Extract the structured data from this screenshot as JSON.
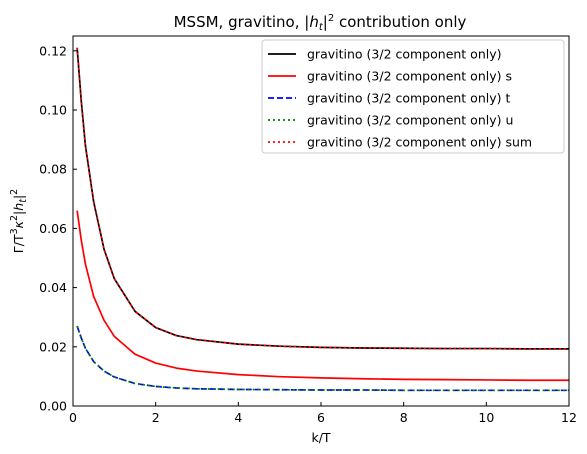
{
  "chart_data": {
    "type": "line",
    "title": {
      "prefix": "MSSM, gravitino, |",
      "var_italic": "h",
      "var_sub": "t",
      "mid": "|",
      "sup": "2",
      "suffix": " contribution only"
    },
    "xlabel": "k/T",
    "ylabel": {
      "parts": [
        {
          "t": "Γ/T",
          "italic": false
        },
        {
          "t": "3",
          "sup": true
        },
        {
          "t": "κ",
          "italic": true
        },
        {
          "t": "2",
          "sup": true
        },
        {
          "t": "|",
          "italic": false
        },
        {
          "t": "h",
          "italic": true
        },
        {
          "t": "t",
          "italic": true,
          "sub": true
        },
        {
          "t": "|",
          "italic": false
        },
        {
          "t": "2",
          "sup": true
        }
      ]
    },
    "xlim": [
      0,
      12
    ],
    "ylim": [
      0,
      0.125
    ],
    "xticks": [
      0,
      2,
      4,
      6,
      8,
      10,
      12
    ],
    "xtick_labels": [
      "0",
      "2",
      "4",
      "6",
      "8",
      "10",
      "12"
    ],
    "yticks": [
      0.0,
      0.02,
      0.04,
      0.06,
      0.08,
      0.1,
      0.12
    ],
    "ytick_labels": [
      "0.00",
      "0.02",
      "0.04",
      "0.06",
      "0.08",
      "0.10",
      "0.12"
    ],
    "grid": false,
    "legend_position": "top-right",
    "x": [
      0.1,
      0.2,
      0.3,
      0.5,
      0.75,
      1.0,
      1.5,
      2.0,
      2.5,
      3.0,
      4.0,
      5.0,
      6.0,
      7.0,
      8.0,
      9.0,
      10.0,
      11.0,
      12.0
    ],
    "series": [
      {
        "name": "gravitino (3/2 component only)",
        "color": "#000000",
        "dash": "solid",
        "values": [
          0.121,
          0.103,
          0.088,
          0.069,
          0.053,
          0.043,
          0.032,
          0.0265,
          0.0238,
          0.0224,
          0.0209,
          0.0202,
          0.0198,
          0.0196,
          0.0195,
          0.0194,
          0.0194,
          0.0193,
          0.0193
        ]
      },
      {
        "name": "gravitino (3/2 component only) s",
        "color": "#ff0000",
        "dash": "solid",
        "values": [
          0.066,
          0.056,
          0.048,
          0.037,
          0.029,
          0.0235,
          0.0175,
          0.0145,
          0.0128,
          0.0118,
          0.0106,
          0.0099,
          0.0095,
          0.0092,
          0.009,
          0.0089,
          0.0088,
          0.0087,
          0.0087
        ]
      },
      {
        "name": "gravitino (3/2 component only) t",
        "color": "#0000ff",
        "dash": "dashed",
        "values": [
          0.027,
          0.023,
          0.0195,
          0.015,
          0.0118,
          0.0098,
          0.0076,
          0.0066,
          0.0061,
          0.0058,
          0.0056,
          0.0055,
          0.0054,
          0.0054,
          0.0053,
          0.0053,
          0.0053,
          0.0053,
          0.0053
        ]
      },
      {
        "name": "gravitino (3/2 component only) u",
        "color": "#008000",
        "dash": "dotted",
        "values": [
          0.027,
          0.023,
          0.0195,
          0.015,
          0.0118,
          0.0098,
          0.0076,
          0.0066,
          0.0061,
          0.0058,
          0.0056,
          0.0055,
          0.0054,
          0.0054,
          0.0053,
          0.0053,
          0.0053,
          0.0053,
          0.0053
        ]
      },
      {
        "name": "gravitino (3/2 component only) sum",
        "color": "#ff0000",
        "dash": "dotted",
        "values": [
          0.121,
          0.103,
          0.088,
          0.069,
          0.053,
          0.043,
          0.032,
          0.0265,
          0.0238,
          0.0224,
          0.0209,
          0.0202,
          0.0198,
          0.0196,
          0.0195,
          0.0194,
          0.0194,
          0.0193,
          0.0193
        ]
      }
    ]
  }
}
